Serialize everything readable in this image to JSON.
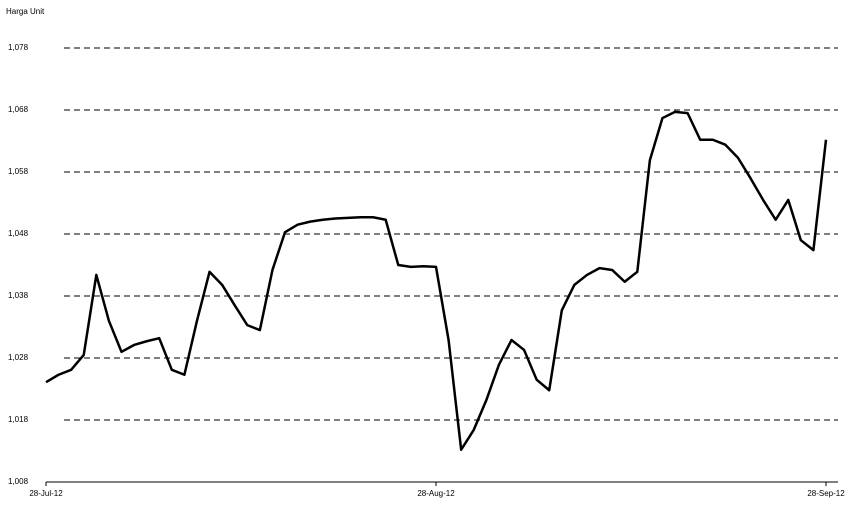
{
  "chart_data": {
    "type": "line",
    "y_label": "Harga Unit",
    "categories": [
      "28-Jul-12",
      null,
      null,
      null,
      null,
      null,
      null,
      null,
      null,
      null,
      null,
      null,
      null,
      null,
      null,
      null,
      null,
      null,
      null,
      null,
      null,
      null,
      null,
      null,
      null,
      null,
      null,
      null,
      null,
      null,
      null,
      "28-Aug-12",
      null,
      null,
      null,
      null,
      null,
      null,
      null,
      null,
      null,
      null,
      null,
      null,
      null,
      null,
      null,
      null,
      null,
      null,
      null,
      null,
      null,
      null,
      null,
      null,
      null,
      null,
      null,
      null,
      null,
      null,
      "28-Sep-12"
    ],
    "series": [
      {
        "color": "#000000",
        "values": [
          1024.1,
          1025.3,
          1026.1,
          1028.5,
          1041.4,
          1034,
          1029,
          1030.1,
          1030.7,
          1031.2,
          1026.1,
          1025.3,
          1034,
          1041.9,
          1039.8,
          1036.5,
          1033.3,
          1032.5,
          1042.2,
          1048.3,
          1049.5,
          1050,
          1050.3,
          1050.5,
          1050.6,
          1050.7,
          1050.7,
          1050.3,
          1043,
          1042.7,
          1042.8,
          1042.7,
          1030.9,
          1013.2,
          1016.4,
          1021.2,
          1026.9,
          1030.9,
          1029.3,
          1024.5,
          1022.8,
          1035.7,
          1039.8,
          1041.4,
          1042.5,
          1042.2,
          1040.3,
          1041.9,
          1059.9,
          1066.7,
          1067.7,
          1067.5,
          1063.2,
          1063.2,
          1062.4,
          1060.3,
          1057,
          1053.5,
          1050.3,
          1053.5,
          1047,
          1045.4,
          1063.2
        ]
      }
    ],
    "ylim": [
      1008,
      1078
    ],
    "yticks": [
      {
        "value": 1008,
        "label": "1,008"
      },
      {
        "value": 1018,
        "label": "1,018"
      },
      {
        "value": 1028,
        "label": "1,028"
      },
      {
        "value": 1038,
        "label": "1,038"
      },
      {
        "value": 1048,
        "label": "1,048"
      },
      {
        "value": 1058,
        "label": "1,058"
      },
      {
        "value": 1068,
        "label": "1,068"
      },
      {
        "value": 1078,
        "label": "1,078"
      }
    ],
    "grid": true
  }
}
